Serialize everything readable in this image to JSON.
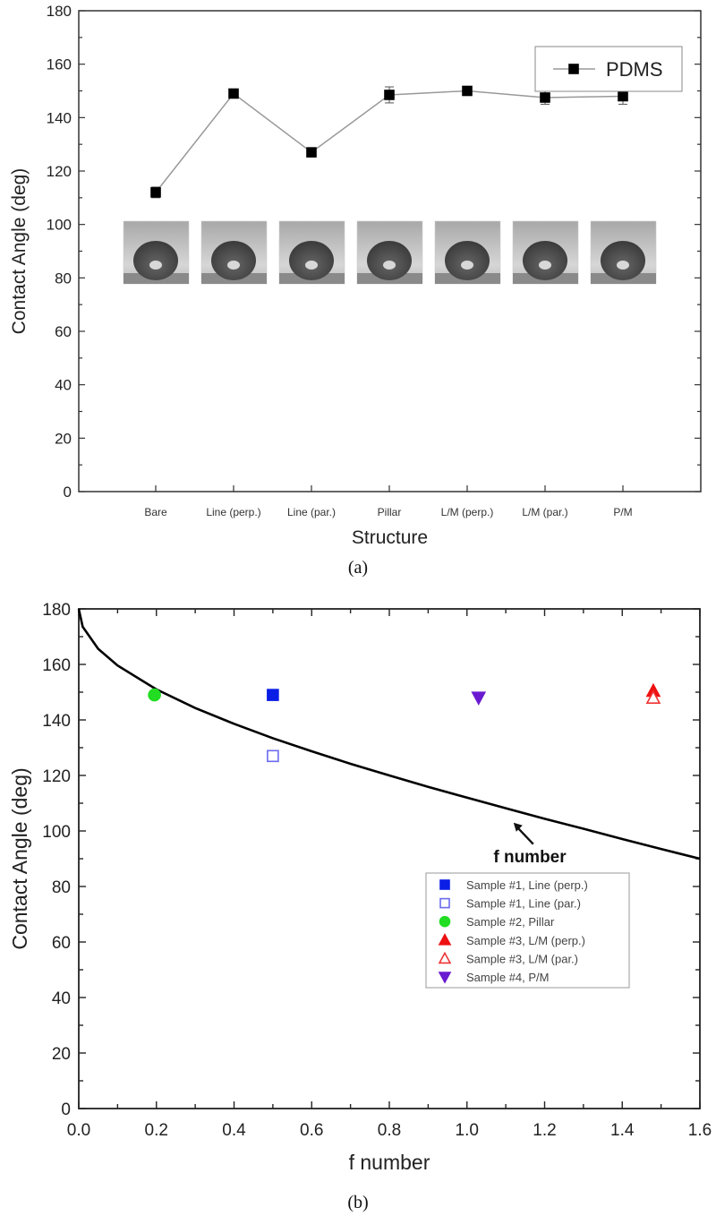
{
  "chart_data": [
    {
      "type": "line",
      "panel_label": "(a)",
      "xlabel": "Structure",
      "ylabel": "Contact Angle (deg)",
      "ylim": [
        0,
        180
      ],
      "yticks": [
        0,
        20,
        40,
        60,
        80,
        100,
        120,
        140,
        160,
        180
      ],
      "categories": [
        "Bare",
        "Line (perp.)",
        "Line (par.)",
        "Pillar",
        "L/M (perp.)",
        "L/M (par.)",
        "P/M"
      ],
      "series": [
        {
          "name": "PDMS",
          "values": [
            112,
            149,
            127,
            148.5,
            150,
            147.5,
            148
          ],
          "errors": [
            2,
            1.5,
            1,
            3,
            1.5,
            2.5,
            3
          ],
          "marker": "square",
          "marker_color": "#000000",
          "line_color": "#999999"
        }
      ],
      "legend_position": "top-right",
      "grid": false,
      "inset_images": "droplet photographs for each structure"
    },
    {
      "type": "scatter",
      "panel_label": "(b)",
      "xlabel": "f number",
      "ylabel": "Contact Angle (deg)",
      "xlim": [
        0,
        1.6
      ],
      "ylim": [
        0,
        180
      ],
      "xticks": [
        "0.0",
        "0.2",
        "0.4",
        "0.6",
        "0.8",
        "1.0",
        "1.2",
        "1.4",
        "1.6"
      ],
      "yticks": [
        0,
        20,
        40,
        60,
        80,
        100,
        120,
        140,
        160,
        180
      ],
      "curve": {
        "label": "f number",
        "color": "#000000",
        "x": [
          0,
          0.01,
          0.05,
          0.1,
          0.2,
          0.3,
          0.4,
          0.5,
          0.6,
          0.7,
          0.8,
          0.9,
          1.0,
          1.1,
          1.2,
          1.3,
          1.4,
          1.5,
          1.6
        ],
        "y": [
          180,
          173.6,
          165.6,
          159.6,
          151.0,
          144.3,
          138.6,
          133.4,
          128.7,
          124.2,
          120.0,
          115.9,
          112.0,
          108.2,
          104.4,
          100.8,
          97.1,
          93.5,
          90.0
        ]
      },
      "annotation": {
        "text": "f number",
        "points_to": [
          1.12,
          103
        ]
      },
      "series": [
        {
          "name": "Sample #1, Line (perp.)",
          "x": [
            0.5
          ],
          "y": [
            149
          ],
          "marker": "square",
          "filled": true,
          "color": "#0a1ee6"
        },
        {
          "name": "Sample #1, Line (par.)",
          "x": [
            0.5
          ],
          "y": [
            127
          ],
          "marker": "square",
          "filled": false,
          "color": "#6a6af0"
        },
        {
          "name": "Sample #2, Pillar",
          "x": [
            0.195
          ],
          "y": [
            149
          ],
          "marker": "circle",
          "filled": true,
          "color": "#22dd22"
        },
        {
          "name": "Sample #3, L/M (perp.)",
          "x": [
            1.48
          ],
          "y": [
            150.5
          ],
          "marker": "triangle-up",
          "filled": true,
          "color": "#ee1111"
        },
        {
          "name": "Sample #3, L/M (par.)",
          "x": [
            1.48
          ],
          "y": [
            148
          ],
          "marker": "triangle-up",
          "filled": false,
          "color": "#ee3333"
        },
        {
          "name": "Sample #4, P/M",
          "x": [
            1.03
          ],
          "y": [
            148
          ],
          "marker": "triangle-down",
          "filled": true,
          "color": "#6a1ad0"
        }
      ],
      "legend_position": "center-right",
      "grid": false
    }
  ]
}
